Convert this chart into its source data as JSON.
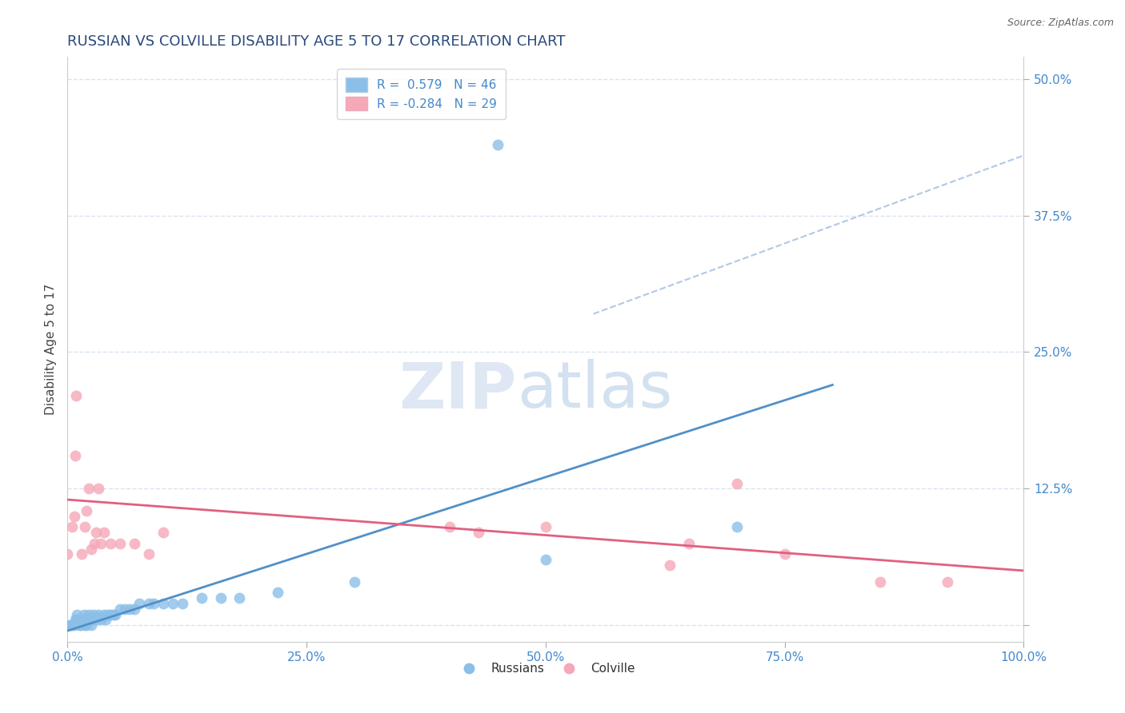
{
  "title": "RUSSIAN VS COLVILLE DISABILITY AGE 5 TO 17 CORRELATION CHART",
  "source": "Source: ZipAtlas.com",
  "ylabel": "Disability Age 5 to 17",
  "watermark_zip": "ZIP",
  "watermark_atlas": "atlas",
  "legend_blue_r": " 0.579",
  "legend_blue_n": "46",
  "legend_pink_r": "-0.284",
  "legend_pink_n": "29",
  "xlim": [
    0.0,
    1.0
  ],
  "ylim": [
    -0.015,
    0.52
  ],
  "yticks": [
    0.0,
    0.125,
    0.25,
    0.375,
    0.5
  ],
  "ytick_labels": [
    "",
    "12.5%",
    "25.0%",
    "37.5%",
    "50.0%"
  ],
  "xticks": [
    0.0,
    0.25,
    0.5,
    0.75,
    1.0
  ],
  "xtick_labels": [
    "0.0%",
    "25.0%",
    "50.0%",
    "75.0%",
    "100.0%"
  ],
  "blue_scatter_color": "#8bbfe8",
  "pink_scatter_color": "#f5a8b8",
  "blue_line_color": "#5090c8",
  "pink_line_color": "#e06080",
  "dashed_line_color": "#b0c8e8",
  "axis_label_color": "#4488cc",
  "tick_color": "#4488cc",
  "title_color": "#2a4a7c",
  "grid_color": "#d8e4f0",
  "source_color": "#666666",
  "blue_scatter": [
    [
      0.0,
      0.0
    ],
    [
      0.003,
      0.0
    ],
    [
      0.005,
      0.0
    ],
    [
      0.007,
      0.0
    ],
    [
      0.008,
      0.005
    ],
    [
      0.01,
      0.005
    ],
    [
      0.01,
      0.01
    ],
    [
      0.012,
      0.0
    ],
    [
      0.014,
      0.0
    ],
    [
      0.015,
      0.005
    ],
    [
      0.016,
      0.005
    ],
    [
      0.017,
      0.01
    ],
    [
      0.018,
      0.0
    ],
    [
      0.02,
      0.0
    ],
    [
      0.02,
      0.005
    ],
    [
      0.022,
      0.01
    ],
    [
      0.025,
      0.0
    ],
    [
      0.025,
      0.005
    ],
    [
      0.027,
      0.01
    ],
    [
      0.03,
      0.005
    ],
    [
      0.032,
      0.01
    ],
    [
      0.035,
      0.005
    ],
    [
      0.038,
      0.01
    ],
    [
      0.04,
      0.005
    ],
    [
      0.042,
      0.01
    ],
    [
      0.045,
      0.01
    ],
    [
      0.048,
      0.01
    ],
    [
      0.05,
      0.01
    ],
    [
      0.055,
      0.015
    ],
    [
      0.06,
      0.015
    ],
    [
      0.065,
      0.015
    ],
    [
      0.07,
      0.015
    ],
    [
      0.075,
      0.02
    ],
    [
      0.085,
      0.02
    ],
    [
      0.09,
      0.02
    ],
    [
      0.1,
      0.02
    ],
    [
      0.11,
      0.02
    ],
    [
      0.12,
      0.02
    ],
    [
      0.14,
      0.025
    ],
    [
      0.16,
      0.025
    ],
    [
      0.18,
      0.025
    ],
    [
      0.22,
      0.03
    ],
    [
      0.3,
      0.04
    ],
    [
      0.45,
      0.44
    ],
    [
      0.5,
      0.06
    ],
    [
      0.7,
      0.09
    ]
  ],
  "pink_scatter": [
    [
      0.0,
      0.065
    ],
    [
      0.005,
      0.09
    ],
    [
      0.007,
      0.1
    ],
    [
      0.008,
      0.155
    ],
    [
      0.009,
      0.21
    ],
    [
      0.015,
      0.065
    ],
    [
      0.018,
      0.09
    ],
    [
      0.02,
      0.105
    ],
    [
      0.022,
      0.125
    ],
    [
      0.025,
      0.07
    ],
    [
      0.028,
      0.075
    ],
    [
      0.03,
      0.085
    ],
    [
      0.032,
      0.125
    ],
    [
      0.035,
      0.075
    ],
    [
      0.038,
      0.085
    ],
    [
      0.045,
      0.075
    ],
    [
      0.055,
      0.075
    ],
    [
      0.07,
      0.075
    ],
    [
      0.085,
      0.065
    ],
    [
      0.1,
      0.085
    ],
    [
      0.4,
      0.09
    ],
    [
      0.43,
      0.085
    ],
    [
      0.5,
      0.09
    ],
    [
      0.63,
      0.055
    ],
    [
      0.65,
      0.075
    ],
    [
      0.7,
      0.13
    ],
    [
      0.75,
      0.065
    ],
    [
      0.85,
      0.04
    ],
    [
      0.92,
      0.04
    ]
  ],
  "blue_line_x": [
    0.0,
    0.8
  ],
  "blue_line_y": [
    -0.005,
    0.22
  ],
  "pink_line_x": [
    0.0,
    1.0
  ],
  "pink_line_y": [
    0.115,
    0.05
  ],
  "dashed_line_x": [
    0.55,
    1.0
  ],
  "dashed_line_y": [
    0.285,
    0.43
  ]
}
